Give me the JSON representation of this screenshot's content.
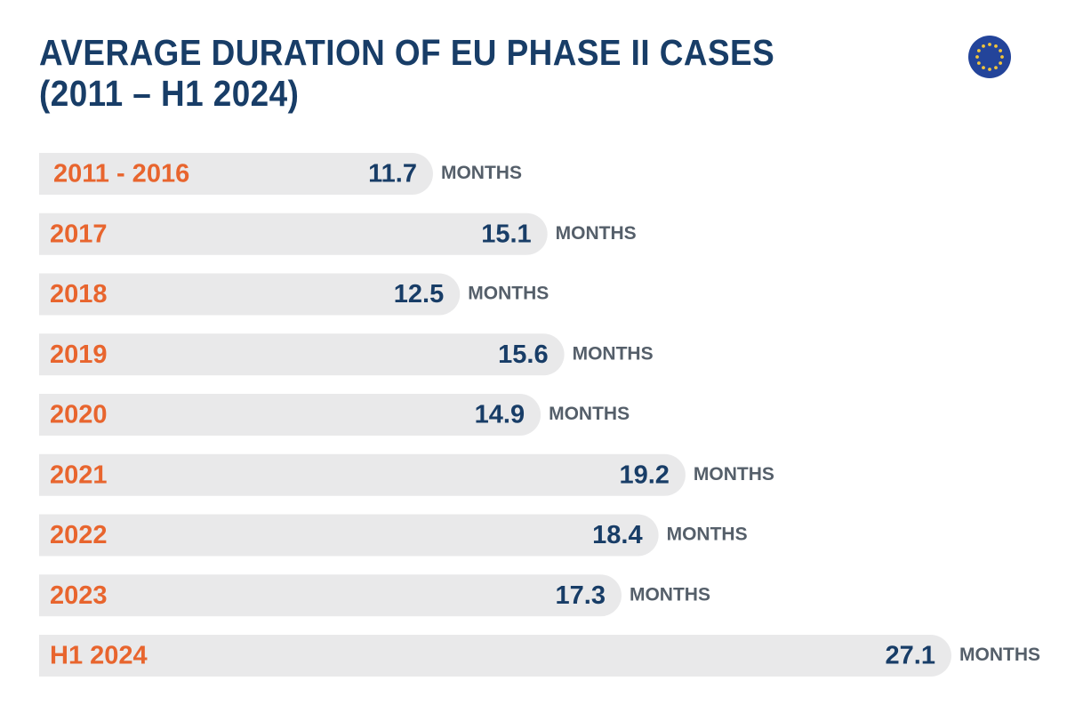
{
  "title": {
    "line1": "AVERAGE DURATION OF EU PHASE II CASES",
    "line2": "(2011 – H1 2024)"
  },
  "icons": {
    "flag": "eu-flag-icon"
  },
  "colors": {
    "title": "#183d67",
    "year_label": "#e8652e",
    "value": "#183d67",
    "unit": "#555f6a",
    "bar": "#e9e9ea",
    "flag_blue": "#23449a",
    "flag_star": "#f2c53a"
  },
  "chart_data": {
    "type": "bar",
    "orientation": "horizontal",
    "categories": [
      "2011 - 2016",
      "2017",
      "2018",
      "2019",
      "2020",
      "2021",
      "2022",
      "2023",
      "H1 2024"
    ],
    "values": [
      11.7,
      15.1,
      12.5,
      15.6,
      14.9,
      19.2,
      18.4,
      17.3,
      27.1
    ],
    "value_labels": [
      "11.7",
      "15.1",
      "12.5",
      "15.6",
      "14.9",
      "19.2",
      "18.4",
      "17.3",
      "27.1"
    ],
    "unit": "MONTHS",
    "title": "AVERAGE DURATION OF EU PHASE II CASES (2011 – H1 2024)",
    "xlabel": "",
    "ylabel": "",
    "xlim": [
      0,
      27.1
    ],
    "grid": false,
    "legend": "none"
  }
}
